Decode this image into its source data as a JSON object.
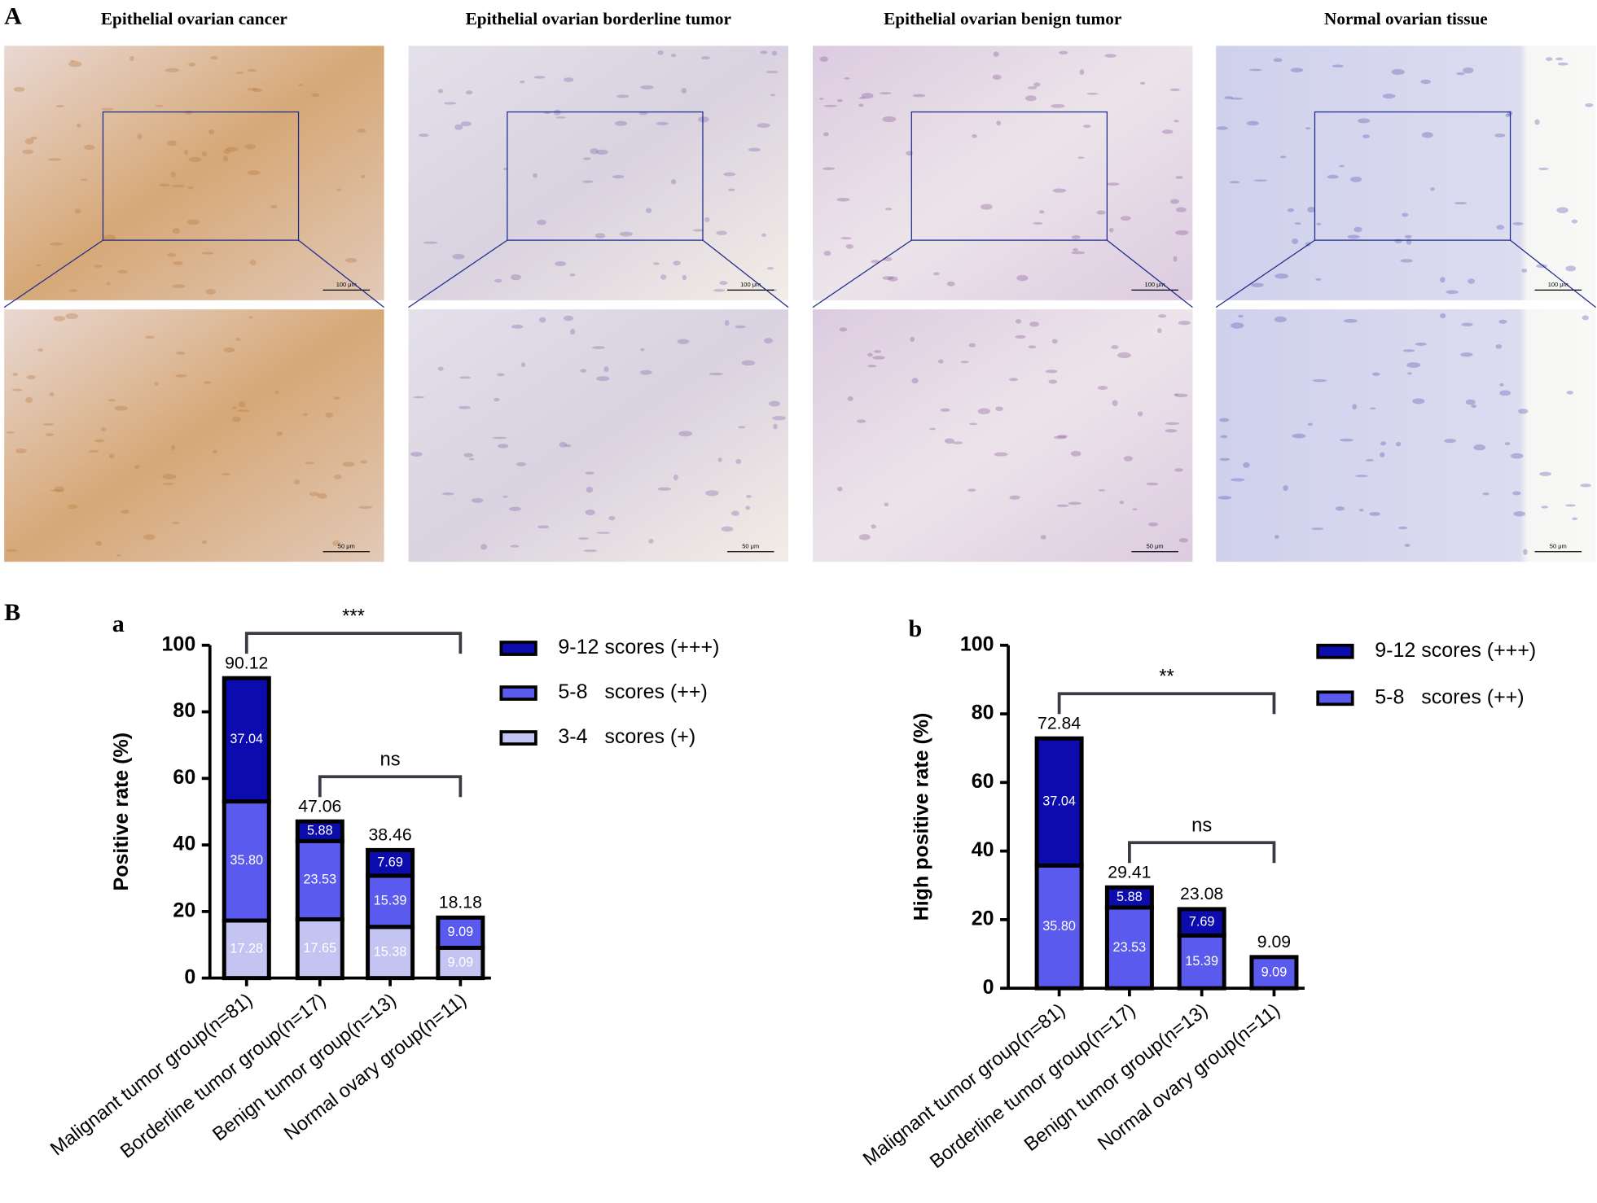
{
  "panel_A": {
    "label": "A",
    "titles": [
      "Epithelial ovarian cancer",
      "Epithelial ovarian borderline tumor",
      "Epithelial ovarian benign tumor",
      "Normal ovarian tissue"
    ],
    "scale_bars": {
      "top": "100 μm",
      "bottom": "50 μm"
    }
  },
  "panel_B": {
    "label": "B"
  },
  "chart_data": [
    {
      "type": "bar",
      "stacked": true,
      "label": "a",
      "ylabel": "Positive rate (%)",
      "categories": [
        "Malignant tumor group(n=81)",
        "Borderline tumor group(n=17)",
        "Benign tumor group(n=13)",
        "Normal ovary group(n=11)"
      ],
      "series": [
        {
          "name": "3-4   scores (+)",
          "color": "#c4c4f2",
          "values": [
            17.28,
            17.65,
            15.38,
            9.09
          ],
          "value_labels": [
            "17.28",
            "17.65",
            "15.38",
            "9.09"
          ]
        },
        {
          "name": "5-8   scores (++)",
          "color": "#5a5aee",
          "values": [
            35.8,
            23.53,
            15.39,
            9.09
          ],
          "value_labels": [
            "35.80",
            "23.53",
            "15.39",
            "9.09"
          ]
        },
        {
          "name": "9-12 scores (+++)",
          "color": "#0c0cae",
          "values": [
            37.04,
            5.88,
            7.69,
            0
          ],
          "value_labels": [
            "37.04",
            "5.88",
            "7.69",
            null
          ]
        }
      ],
      "total_labels": [
        "90.12",
        "47.06",
        "38.46",
        "18.18"
      ],
      "annotations": [
        {
          "text": "***",
          "from": 0,
          "to": 3
        },
        {
          "text": "ns",
          "from": 1,
          "to": 3
        }
      ],
      "ylim": [
        0,
        100
      ],
      "yticks": [
        0,
        20,
        40,
        60,
        80,
        100
      ]
    },
    {
      "type": "bar",
      "stacked": true,
      "label": "b",
      "ylabel": "High positive rate  (%)",
      "categories": [
        "Malignant tumor group(n=81)",
        "Borderline tumor group(n=17)",
        "Benign tumor group(n=13)",
        "Normal ovary group(n=11)"
      ],
      "series": [
        {
          "name": "5-8   scores (++)",
          "color": "#5a5aee",
          "values": [
            35.8,
            23.53,
            15.39,
            9.09
          ],
          "value_labels": [
            "35.80",
            "23.53",
            "15.39",
            "9.09"
          ]
        },
        {
          "name": "9-12 scores (+++)",
          "color": "#0c0cae",
          "values": [
            37.04,
            5.88,
            7.69,
            0
          ],
          "value_labels": [
            "37.04",
            "5.88",
            "7.69",
            null
          ]
        }
      ],
      "total_labels": [
        "72.84",
        "29.41",
        "23.08",
        "9.09"
      ],
      "annotations": [
        {
          "text": "**",
          "from": 0,
          "to": 3
        },
        {
          "text": "ns",
          "from": 1,
          "to": 3
        }
      ],
      "ylim": [
        0,
        100
      ],
      "yticks": [
        0,
        20,
        40,
        60,
        80,
        100
      ]
    }
  ]
}
